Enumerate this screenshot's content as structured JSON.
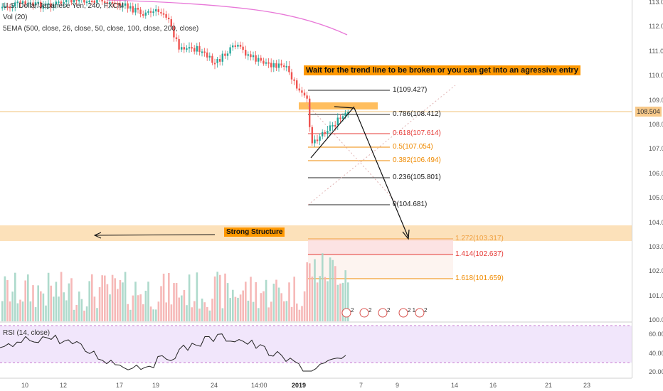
{
  "legend": {
    "symbol_line": "U.S. Dollar/Japanese Yen, 240, FXCM",
    "volume_line": "Vol (20)",
    "ema_line": "5EMA (500, close, 26, close, 50, close, 100, close, 200, close)"
  },
  "price_axis": {
    "ticks": [
      "113.000",
      "112.000",
      "111.000",
      "110.000",
      "109.000",
      "108.000",
      "107.000",
      "106.000",
      "105.000",
      "104.000",
      "103.000",
      "102.000",
      "101.000",
      "100.000"
    ],
    "current_price": "108.504"
  },
  "rsi": {
    "label": "RSI (14, close)",
    "ticks": [
      "60.0000",
      "40.0000",
      "20.0000"
    ]
  },
  "time_axis": {
    "labels": [
      "10",
      "12",
      "17",
      "19",
      "24",
      "14:00",
      "2019",
      "7",
      "9",
      "14",
      "16",
      "21",
      "23"
    ]
  },
  "fib_upper": {
    "levels": [
      {
        "label": "1(109.427)",
        "color": "#222222"
      },
      {
        "label": "0.786(108.412)",
        "color": "#222222"
      },
      {
        "label": "0.618(107.614)",
        "color": "#e53935"
      },
      {
        "label": "0.5(107.054)",
        "color": "#ef8a00"
      },
      {
        "label": "0.382(106.494)",
        "color": "#ef8a00"
      },
      {
        "label": "0.236(105.801)",
        "color": "#222222"
      },
      {
        "label": "0(104.681)",
        "color": "#222222"
      }
    ]
  },
  "fib_lower": {
    "levels": [
      {
        "label": "1.272(103.317)",
        "color": "#f0a040"
      },
      {
        "label": "1.414(102.637)",
        "color": "#e53935"
      },
      {
        "label": "1.618(101.659)",
        "color": "#ef8a00"
      }
    ]
  },
  "annotations": {
    "entry_note": "Wait for the trend line to be broken or you can get into an agressive entry",
    "structure_note": "Strong Structure"
  },
  "event_markers": [
    "2",
    "2",
    "2",
    "2 1",
    "2"
  ],
  "colors": {
    "up_candle": "#26a69a",
    "down_candle": "#ef5350",
    "ema": "#e879d8",
    "structure_zone": "#fbd9a9",
    "callout": "#ff9800",
    "rsi_band": "#f1e6fb"
  }
}
